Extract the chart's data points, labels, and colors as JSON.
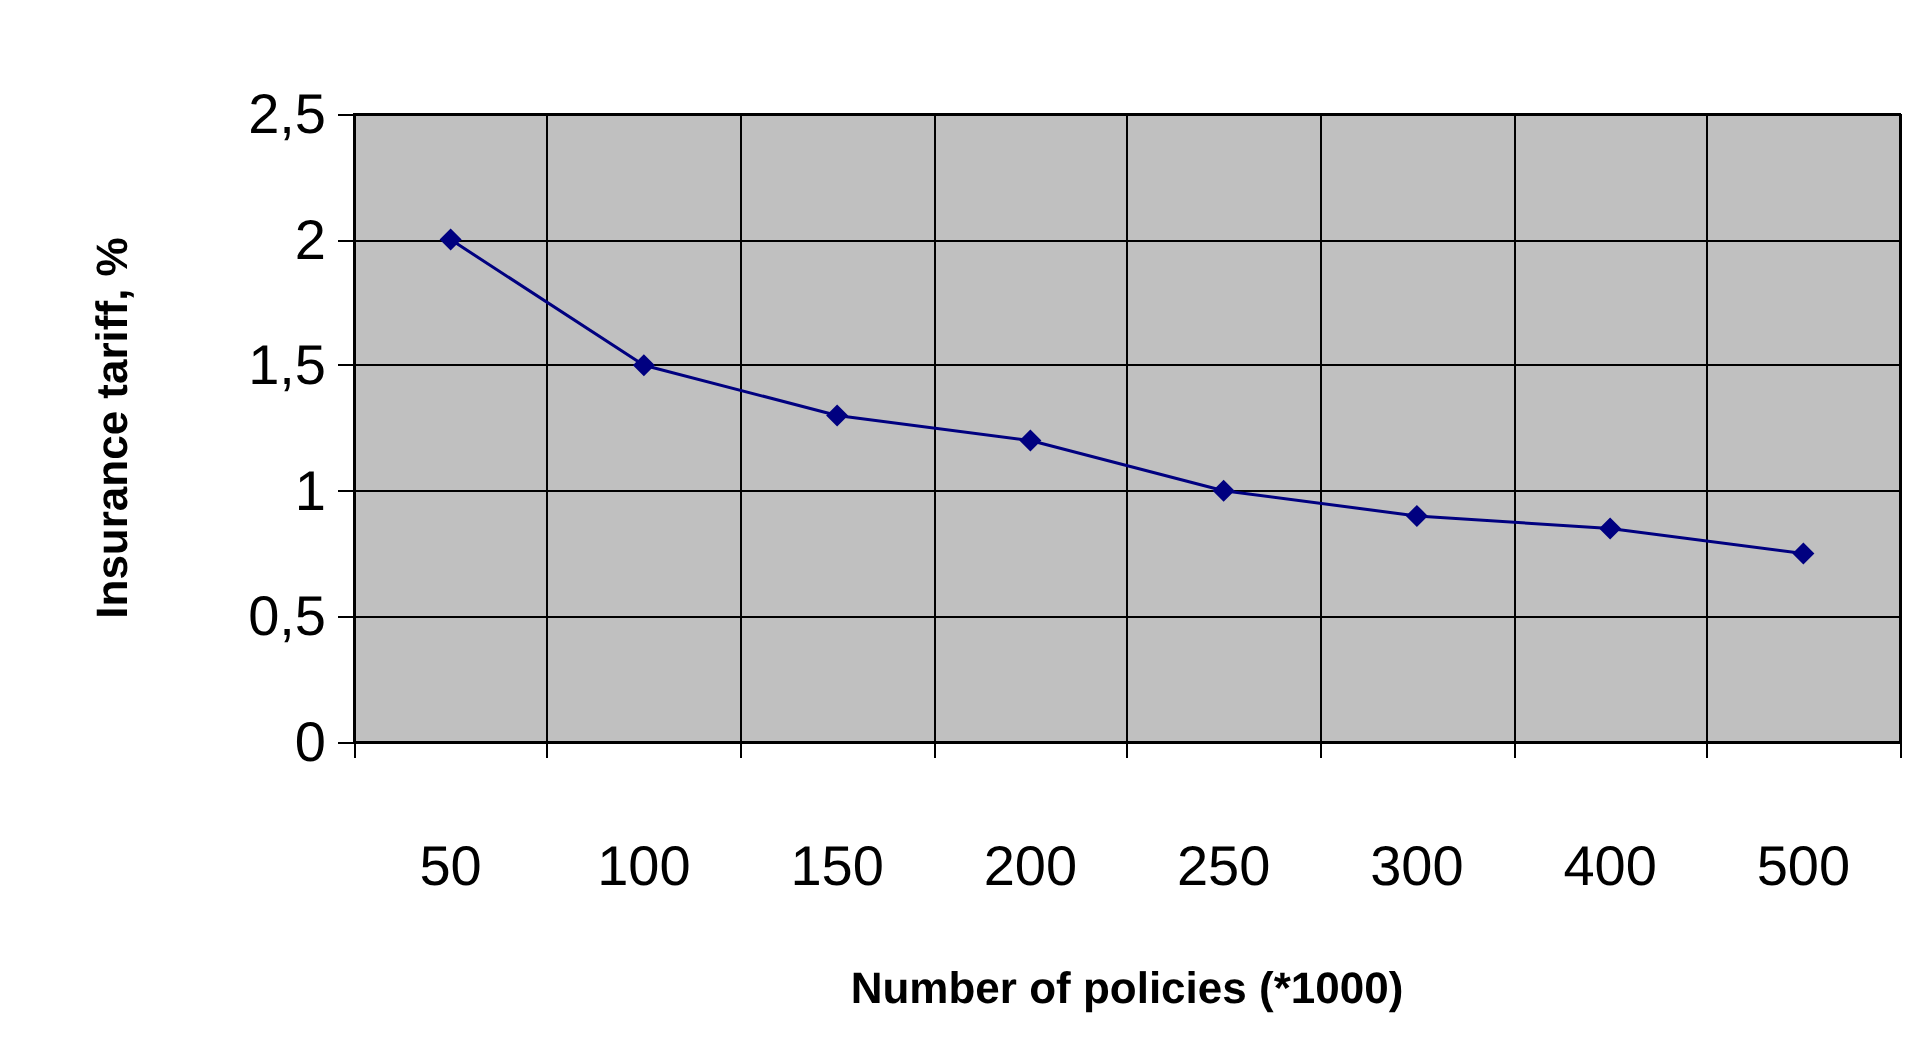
{
  "chart_data": {
    "type": "line",
    "xlabel": "Number of policies (*1000)",
    "ylabel": "Insurance tariff, %",
    "categories": [
      "50",
      "100",
      "150",
      "200",
      "250",
      "300",
      "400",
      "500"
    ],
    "series": [
      {
        "color": "#000080",
        "values": [
          2,
          1.5,
          1.3,
          1.2,
          1,
          0.9,
          0.85,
          0.75
        ]
      }
    ],
    "ylim": [
      0,
      2.5
    ],
    "yticks": [
      0,
      {
        "value": 0.5,
        "label": "0,5"
      },
      1,
      {
        "value": 1.5,
        "label": "1,5"
      },
      2,
      {
        "value": 2.5,
        "label": "2,5"
      }
    ],
    "grid": true,
    "marker": "diamond",
    "line_style": "solid"
  }
}
